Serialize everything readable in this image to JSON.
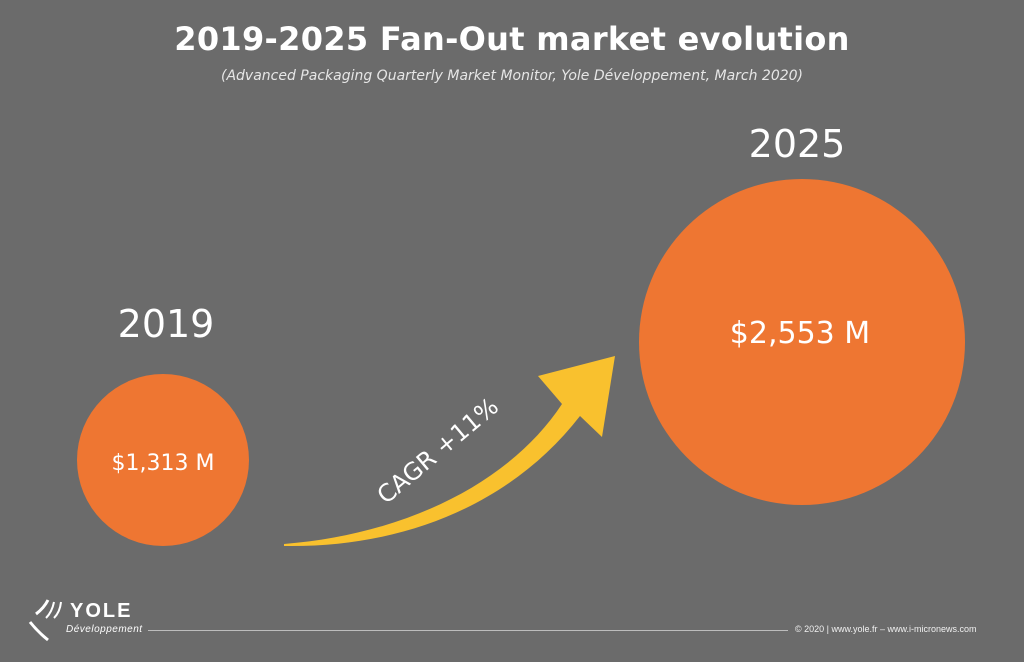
{
  "title": "2019-2025 Fan-Out market evolution",
  "subtitle": "(Advanced Packaging Quarterly Market Monitor, Yole Développement, March 2020)",
  "chart_data": {
    "type": "bubble",
    "points": [
      {
        "year": "2019",
        "value": 1313,
        "label": "$1,313 M"
      },
      {
        "year": "2025",
        "value": 2553,
        "label": "$2,553 M"
      }
    ],
    "units": "M",
    "annotation": "CAGR +11%",
    "colors": {
      "bubble": "#ee7632",
      "arrow": "#f9c12e",
      "background": "#6b6b6b"
    }
  },
  "brand": {
    "name": "YOLE",
    "sub": "Développement",
    "icon": "yole-logo-icon"
  },
  "footer": "© 2020 | www.yole.fr – www.i-micronews.com"
}
